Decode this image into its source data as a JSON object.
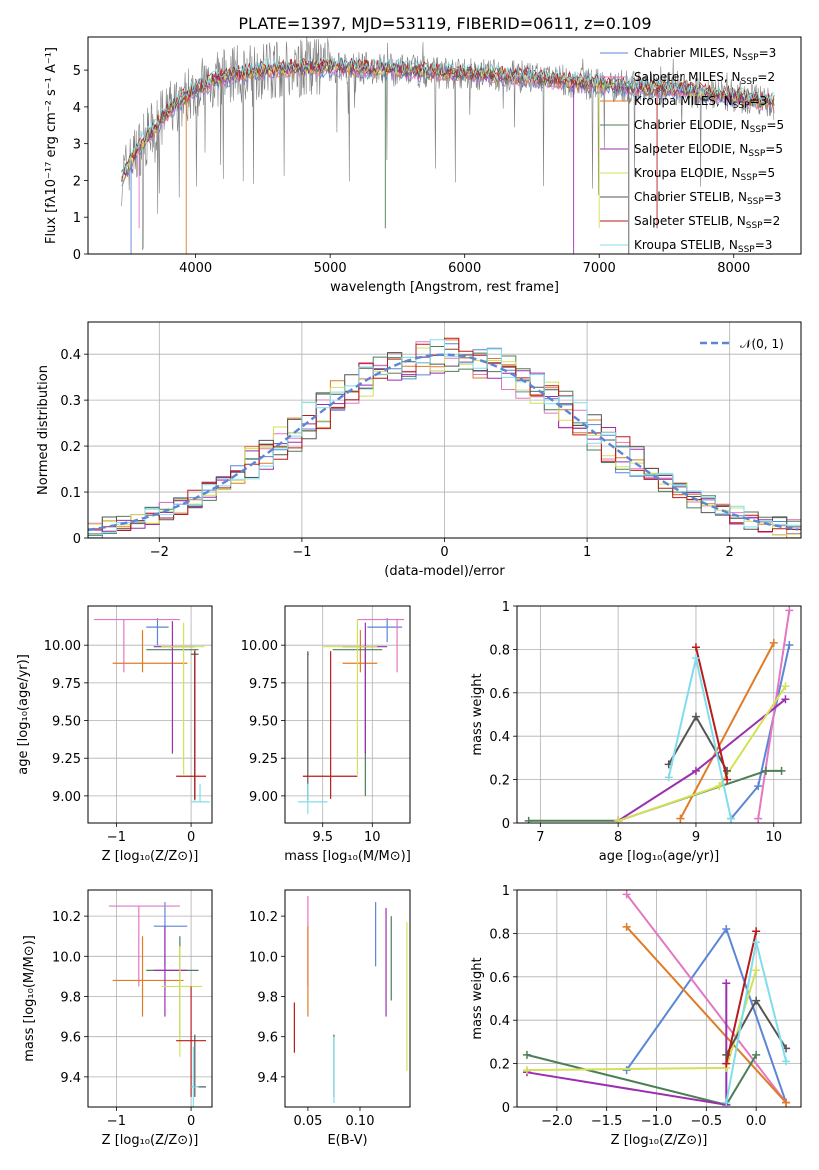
{
  "figure": {
    "title": "PLATE=1397, MJD=53119, FIBERID=0611, z=0.109"
  },
  "colors": {
    "Chabrier MILES": "#5b86d6",
    "Salpeter MILES": "#e377c2",
    "Kroupa MILES": "#e07b26",
    "Chabrier ELODIE": "#4d7f57",
    "Salpeter ELODIE": "#9b2fae",
    "Kroupa ELODIE": "#d4e157",
    "Chabrier STELIB": "#555555",
    "Salpeter STELIB": "#b71c1c",
    "Kroupa STELIB": "#80deea",
    "gaussian": "#5b86d6",
    "spectrum_data": "#7f7f7f"
  },
  "chart_data": [
    {
      "id": "spectrum",
      "type": "line",
      "xlabel": "wavelength [Angstrom, rest frame]",
      "ylabel": "Flux [fλ10⁻¹⁷ erg cm⁻² s⁻¹ A⁻¹]",
      "xlim": [
        3200,
        8500
      ],
      "ylim": [
        0,
        5.9
      ],
      "xticks": [
        4000,
        5000,
        6000,
        7000,
        8000
      ],
      "yticks": [
        0,
        1,
        2,
        3,
        4,
        5
      ],
      "legend_position": "right",
      "legend": [
        "Chabrier MILES, N_SSP=3",
        "Salpeter MILES, N_SSP=2",
        "Kroupa MILES, N_SSP=3",
        "Chabrier ELODIE, N_SSP=5",
        "Salpeter ELODIE, N_SSP=5",
        "Kroupa ELODIE, N_SSP=5",
        "Chabrier STELIB, N_SSP=3",
        "Salpeter STELIB, N_SSP=2",
        "Kroupa STELIB, N_SSP=3"
      ],
      "legend_names": [
        "Chabrier MILES",
        "Salpeter MILES",
        "Kroupa MILES",
        "Chabrier ELODIE",
        "Salpeter ELODIE",
        "Kroupa ELODIE",
        "Chabrier STELIB",
        "Salpeter STELIB",
        "Kroupa STELIB"
      ],
      "legend_series": [
        "Chabrier MILES",
        "Salpeter MILES",
        "Kroupa MILES",
        "Chabrier ELODIE",
        "Salpeter ELODIE",
        "Kroupa ELODIE",
        "Chabrier STELIB",
        "Salpeter STELIB",
        "Kroupa STELIB"
      ],
      "continuum": {
        "x": [
          3450,
          3600,
          3800,
          4000,
          4200,
          4500,
          5000,
          5500,
          6000,
          6500,
          7000,
          7500,
          8000,
          8300
        ],
        "y": [
          2.1,
          3.0,
          3.9,
          4.5,
          4.8,
          5.0,
          5.1,
          5.0,
          4.9,
          4.8,
          4.6,
          4.5,
          4.3,
          4.1
        ]
      }
    },
    {
      "id": "residuals",
      "type": "line",
      "xlabel": "(data-model)/error",
      "ylabel": "Normed distribution",
      "xlim": [
        -2.5,
        2.5
      ],
      "ylim": [
        0,
        0.47
      ],
      "xticks": [
        -2,
        -1,
        0,
        1,
        2
      ],
      "yticks": [
        0.0,
        0.1,
        0.2,
        0.3,
        0.4
      ],
      "legend": [
        "𝒩(0, 1)"
      ],
      "legend_position": "top-right",
      "grid": true
    },
    {
      "id": "age_vs_Z",
      "type": "scatter",
      "xlabel": "Z [log₁₀(Z/Z⊙)]",
      "ylabel": "age  [log₁₀(age/yr)]",
      "xlim": [
        -1.38,
        0.28
      ],
      "ylim": [
        8.82,
        10.26
      ],
      "xticks": [
        -1,
        0
      ],
      "yticks": [
        9.0,
        9.25,
        9.5,
        9.75,
        10.0
      ],
      "ytick_labels": [
        "9.00",
        "9.25",
        "9.50",
        "9.75",
        "10.00"
      ],
      "grid": true,
      "points": [
        {
          "s": "Chabrier MILES",
          "x": -0.45,
          "y": 10.12,
          "xe": [
            -0.6,
            -0.3
          ],
          "ye": [
            10.0,
            10.18
          ]
        },
        {
          "s": "Salpeter MILES",
          "x": -0.9,
          "y": 10.17,
          "xe": [
            -1.3,
            -0.15
          ],
          "ye": [
            9.82,
            10.17
          ]
        },
        {
          "s": "Kroupa MILES",
          "x": -0.65,
          "y": 9.88,
          "xe": [
            -1.05,
            -0.05
          ],
          "ye": [
            9.82,
            10.1
          ]
        },
        {
          "s": "Chabrier ELODIE",
          "x": 0.05,
          "y": 9.97,
          "xe": [
            -0.6,
            0.1
          ],
          "ye": [
            8.98,
            9.97
          ]
        },
        {
          "s": "Salpeter ELODIE",
          "x": -0.25,
          "y": 9.99,
          "xe": [
            -0.5,
            0.05
          ],
          "ye": [
            9.28,
            10.16
          ]
        },
        {
          "s": "Kroupa ELODIE",
          "x": -0.1,
          "y": 9.99,
          "xe": [
            -0.4,
            0.18
          ],
          "ye": [
            9.14,
            10.15
          ]
        },
        {
          "s": "Chabrier STELIB",
          "x": 0.05,
          "y": 9.94,
          "xe": [
            0.0,
            0.1
          ],
          "ye": [
            8.97,
            9.96
          ]
        },
        {
          "s": "Salpeter STELIB",
          "x": 0.05,
          "y": 9.13,
          "xe": [
            -0.2,
            0.2
          ],
          "ye": [
            8.98,
            9.96
          ]
        },
        {
          "s": "Kroupa STELIB",
          "x": 0.12,
          "y": 8.96,
          "xe": [
            0.0,
            0.25
          ],
          "ye": [
            8.96,
            9.08
          ]
        }
      ]
    },
    {
      "id": "age_vs_mass",
      "type": "scatter",
      "xlabel": "mass [log₁₀(M/M⊙)]",
      "ylabel": "",
      "xlim": [
        9.12,
        10.38
      ],
      "ylim": [
        8.82,
        10.26
      ],
      "xticks": [
        9.5,
        10.0
      ],
      "yticks": [
        9.0,
        9.25,
        9.5,
        9.75,
        10.0
      ],
      "ytick_labels": [
        "9.00",
        "9.25",
        "9.50",
        "9.75",
        "10.00"
      ],
      "grid": true,
      "points": [
        {
          "s": "Chabrier MILES",
          "x": 10.15,
          "y": 10.12,
          "xe": [
            9.95,
            10.3
          ],
          "ye": [
            10.02,
            10.18
          ]
        },
        {
          "s": "Salpeter MILES",
          "x": 10.25,
          "y": 10.17,
          "xe": [
            9.85,
            10.32
          ],
          "ye": [
            9.82,
            10.17
          ]
        },
        {
          "s": "Kroupa MILES",
          "x": 9.88,
          "y": 9.88,
          "xe": [
            9.7,
            10.05
          ],
          "ye": [
            9.82,
            10.1
          ]
        },
        {
          "s": "Chabrier ELODIE",
          "x": 9.93,
          "y": 9.97,
          "xe": [
            9.6,
            10.1
          ],
          "ye": [
            9.0,
            10.0
          ]
        },
        {
          "s": "Salpeter ELODIE",
          "x": 9.93,
          "y": 9.99,
          "xe": [
            9.7,
            10.15
          ],
          "ye": [
            9.28,
            10.15
          ]
        },
        {
          "s": "Kroupa ELODIE",
          "x": 9.85,
          "y": 9.99,
          "xe": [
            9.5,
            10.05
          ],
          "ye": [
            9.14,
            10.17
          ]
        },
        {
          "s": "Chabrier STELIB",
          "x": 9.35,
          "y": 9.94,
          "xe": [
            9.35,
            9.36
          ],
          "ye": [
            8.97,
            9.96
          ]
        },
        {
          "s": "Salpeter STELIB",
          "x": 9.58,
          "y": 9.13,
          "xe": [
            9.3,
            9.85
          ],
          "ye": [
            8.98,
            9.96
          ]
        },
        {
          "s": "Kroupa STELIB",
          "x": 9.35,
          "y": 8.96,
          "xe": [
            9.25,
            9.55
          ],
          "ye": [
            8.88,
            9.08
          ]
        }
      ]
    },
    {
      "id": "weight_vs_age",
      "type": "line",
      "xlabel": "age  [log₁₀(age/yr)]",
      "ylabel": "mass weight",
      "xlim": [
        6.7,
        10.35
      ],
      "ylim": [
        0,
        1.0
      ],
      "xticks": [
        7,
        8,
        9,
        10
      ],
      "yticks": [
        0.0,
        0.2,
        0.4,
        0.6,
        0.8,
        1.0
      ],
      "grid": true,
      "series": [
        {
          "name": "Chabrier MILES",
          "x": [
            9.45,
            9.8,
            10.2
          ],
          "y": [
            0.02,
            0.17,
            0.82
          ]
        },
        {
          "name": "Salpeter MILES",
          "x": [
            9.8,
            10.2
          ],
          "y": [
            0.02,
            0.98
          ]
        },
        {
          "name": "Kroupa MILES",
          "x": [
            8.8,
            10.0
          ],
          "y": [
            0.02,
            0.83
          ]
        },
        {
          "name": "Chabrier ELODIE",
          "x": [
            6.85,
            8.0,
            9.9,
            10.1
          ],
          "y": [
            0.01,
            0.01,
            0.24,
            0.24
          ]
        },
        {
          "name": "Salpeter ELODIE",
          "x": [
            8.0,
            9.0,
            10.15
          ],
          "y": [
            0.01,
            0.24,
            0.57
          ]
        },
        {
          "name": "Kroupa ELODIE",
          "x": [
            8.0,
            9.3,
            10.15
          ],
          "y": [
            0.01,
            0.17,
            0.63
          ]
        },
        {
          "name": "Chabrier STELIB",
          "x": [
            8.65,
            9.0,
            9.4
          ],
          "y": [
            0.27,
            0.49,
            0.24
          ]
        },
        {
          "name": "Salpeter STELIB",
          "x": [
            9.0,
            9.4
          ],
          "y": [
            0.81,
            0.2
          ]
        },
        {
          "name": "Kroupa STELIB",
          "x": [
            8.65,
            9.0,
            9.45
          ],
          "y": [
            0.21,
            0.76,
            0.02
          ]
        }
      ]
    },
    {
      "id": "mass_vs_Z",
      "type": "scatter",
      "xlabel": "Z [log₁₀(Z/Z⊙)]",
      "ylabel": "mass [log₁₀(M/M⊙)]",
      "xlim": [
        -1.38,
        0.28
      ],
      "ylim": [
        9.25,
        10.33
      ],
      "xticks": [
        -1,
        0
      ],
      "yticks": [
        9.4,
        9.6,
        9.8,
        10.0,
        10.2
      ],
      "ytick_labels": [
        "9.4",
        "9.6",
        "9.8",
        "10.0",
        "10.2"
      ],
      "grid": true,
      "points": [
        {
          "s": "Chabrier MILES",
          "x": -0.35,
          "y": 10.15,
          "xe": [
            -0.5,
            -0.05
          ],
          "ye": [
            9.95,
            10.27
          ]
        },
        {
          "s": "Salpeter MILES",
          "x": -0.7,
          "y": 10.25,
          "xe": [
            -1.1,
            -0.15
          ],
          "ye": [
            9.85,
            10.25
          ]
        },
        {
          "s": "Kroupa MILES",
          "x": -0.65,
          "y": 9.88,
          "xe": [
            -1.05,
            -0.1
          ],
          "ye": [
            9.7,
            10.1
          ]
        },
        {
          "s": "Chabrier ELODIE",
          "x": -0.15,
          "y": 9.93,
          "xe": [
            -0.6,
            0.1
          ],
          "ye": [
            9.6,
            10.1
          ]
        },
        {
          "s": "Salpeter ELODIE",
          "x": -0.35,
          "y": 9.93,
          "xe": [
            -0.5,
            -0.05
          ],
          "ye": [
            9.7,
            10.15
          ]
        },
        {
          "s": "Kroupa ELODIE",
          "x": -0.15,
          "y": 9.85,
          "xe": [
            -0.4,
            0.15
          ],
          "ye": [
            9.5,
            10.05
          ]
        },
        {
          "s": "Chabrier STELIB",
          "x": 0.05,
          "y": 9.35,
          "xe": [
            0.0,
            0.2
          ],
          "ye": [
            9.3,
            9.61
          ]
        },
        {
          "s": "Salpeter STELIB",
          "x": 0.0,
          "y": 9.58,
          "xe": [
            -0.2,
            0.2
          ],
          "ye": [
            9.3,
            9.85
          ]
        },
        {
          "s": "Kroupa STELIB",
          "x": 0.03,
          "y": 9.35,
          "xe": [
            0.0,
            0.1
          ],
          "ye": [
            9.25,
            9.55
          ]
        }
      ]
    },
    {
      "id": "mass_vs_EBV",
      "type": "scatter",
      "xlabel": "E(B-V)",
      "ylabel": "",
      "xlim": [
        0.028,
        0.148
      ],
      "ylim": [
        9.25,
        10.33
      ],
      "xticks": [
        0.05,
        0.1
      ],
      "xtick_labels": [
        "0.05",
        "0.10"
      ],
      "yticks": [
        9.4,
        9.6,
        9.8,
        10.0,
        10.2
      ],
      "ytick_labels": [
        "9.4",
        "9.6",
        "9.8",
        "10.0",
        "10.2"
      ],
      "grid": false,
      "points": [
        {
          "s": "Chabrier MILES",
          "x": 0.115,
          "y": 10.15,
          "ye": [
            9.95,
            10.27
          ]
        },
        {
          "s": "Salpeter MILES",
          "x": 0.05,
          "y": 10.25,
          "ye": [
            9.85,
            10.3
          ]
        },
        {
          "s": "Kroupa MILES",
          "x": 0.05,
          "y": 9.88,
          "ye": [
            9.7,
            10.15
          ]
        },
        {
          "s": "Chabrier ELODIE",
          "x": 0.13,
          "y": 9.93,
          "ye": [
            9.78,
            10.2
          ]
        },
        {
          "s": "Salpeter ELODIE",
          "x": 0.125,
          "y": 9.93,
          "ye": [
            9.7,
            10.24
          ]
        },
        {
          "s": "Kroupa ELODIE",
          "x": 0.145,
          "y": 9.85,
          "ye": [
            9.43,
            10.17
          ]
        },
        {
          "s": "Chabrier STELIB",
          "x": 0.075,
          "y": 9.35,
          "ye": [
            9.3,
            9.61
          ]
        },
        {
          "s": "Salpeter STELIB",
          "x": 0.037,
          "y": 9.58,
          "ye": [
            9.52,
            9.77
          ]
        },
        {
          "s": "Kroupa STELIB",
          "x": 0.075,
          "y": 9.35,
          "ye": [
            9.27,
            9.6
          ]
        }
      ]
    },
    {
      "id": "weight_vs_Z",
      "type": "line",
      "xlabel": "Z [log₁₀(Z/Z⊙)]",
      "ylabel": "mass weight",
      "xlim": [
        -2.4,
        0.45
      ],
      "ylim": [
        0,
        1.0
      ],
      "xticks": [
        -2.0,
        -1.5,
        -1.0,
        -0.5,
        0.0
      ],
      "xtick_labels": [
        "−2.0",
        "−1.5",
        "−1.0",
        "−0.5",
        "0.0"
      ],
      "yticks": [
        0.0,
        0.2,
        0.4,
        0.6,
        0.8,
        1.0
      ],
      "grid": true,
      "series": [
        {
          "name": "Chabrier MILES",
          "x": [
            -1.3,
            -0.3,
            0.3
          ],
          "y": [
            0.17,
            0.82,
            0.02
          ]
        },
        {
          "name": "Salpeter MILES",
          "x": [
            -1.3,
            0.3
          ],
          "y": [
            0.98,
            0.02
          ]
        },
        {
          "name": "Kroupa MILES",
          "x": [
            -1.3,
            0.3
          ],
          "y": [
            0.83,
            0.02
          ]
        },
        {
          "name": "Chabrier ELODIE",
          "x": [
            -2.3,
            -0.3,
            0.0
          ],
          "y": [
            0.24,
            0.01,
            0.24
          ]
        },
        {
          "name": "Salpeter ELODIE",
          "x": [
            -2.3,
            -0.3,
            -0.3
          ],
          "y": [
            0.16,
            0.01,
            0.57
          ]
        },
        {
          "name": "Kroupa ELODIE",
          "x": [
            -2.3,
            -0.3,
            0.0
          ],
          "y": [
            0.17,
            0.18,
            0.63
          ]
        },
        {
          "name": "Chabrier STELIB",
          "x": [
            -0.3,
            0.0,
            0.3
          ],
          "y": [
            0.24,
            0.49,
            0.27
          ]
        },
        {
          "name": "Salpeter STELIB",
          "x": [
            -0.3,
            0.0
          ],
          "y": [
            0.2,
            0.81
          ]
        },
        {
          "name": "Kroupa STELIB",
          "x": [
            -0.3,
            0.0,
            0.3
          ],
          "y": [
            0.02,
            0.76,
            0.21
          ]
        }
      ]
    }
  ]
}
